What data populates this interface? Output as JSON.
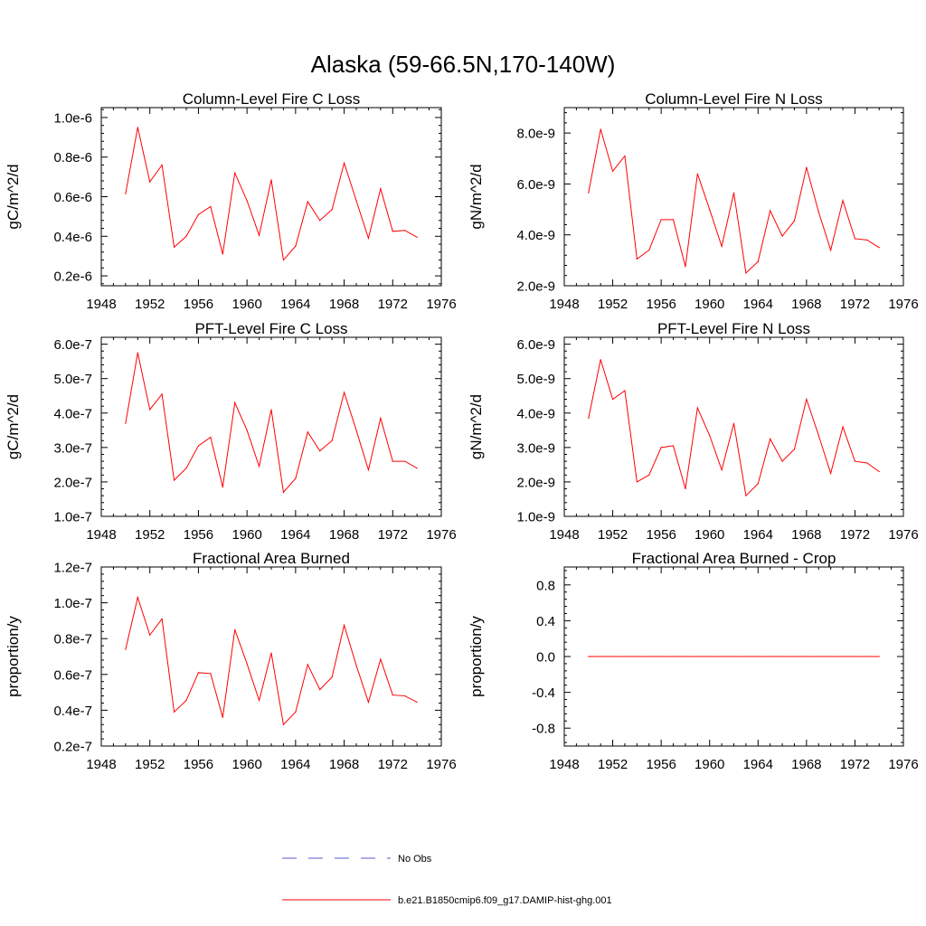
{
  "title": "Alaska (59-66.5N,170-140W)",
  "colors": {
    "model": "#ff0000",
    "obs": "#5a5ad2",
    "axis": "#000000"
  },
  "legend": {
    "entries": [
      {
        "label": "No Obs",
        "style": "dashed",
        "color": "#5a5ad2"
      },
      {
        "label": "b.e21.B1850cmip6.f09_g17.DAMIP-hist-ghg.001",
        "style": "solid",
        "color": "#ff0000"
      }
    ]
  },
  "chart_data": [
    {
      "type": "line",
      "title": "Column-Level Fire C Loss",
      "ylabel": "gC/m^2/d",
      "xlim": [
        1948,
        1976
      ],
      "ylim": [
        1.5e-07,
        1.05e-06
      ],
      "xticks": [
        1948,
        1952,
        1956,
        1960,
        1964,
        1968,
        1972,
        1976
      ],
      "yticks": [
        {
          "value": 2e-07,
          "label": "0.2e-6"
        },
        {
          "value": 4e-07,
          "label": "0.4e-6"
        },
        {
          "value": 6e-07,
          "label": "0.6e-6"
        },
        {
          "value": 8e-07,
          "label": "0.8e-6"
        },
        {
          "value": 1e-06,
          "label": "1.0e-6"
        }
      ],
      "x": [
        1950,
        1951,
        1952,
        1953,
        1954,
        1955,
        1956,
        1957,
        1958,
        1959,
        1960,
        1961,
        1962,
        1963,
        1964,
        1965,
        1966,
        1967,
        1968,
        1969,
        1970,
        1971,
        1972,
        1973,
        1974
      ],
      "series": [
        {
          "values": [
            6.15e-07,
            9.5e-07,
            6.75e-07,
            7.6e-07,
            3.45e-07,
            4e-07,
            5.1e-07,
            5.5e-07,
            3.1e-07,
            7.2e-07,
            5.8e-07,
            4.05e-07,
            6.85e-07,
            2.8e-07,
            3.5e-07,
            5.75e-07,
            4.8e-07,
            5.35e-07,
            7.7e-07,
            5.8e-07,
            3.9e-07,
            6.4e-07,
            4.25e-07,
            4.3e-07,
            3.95e-07
          ]
        }
      ]
    },
    {
      "type": "line",
      "title": "Column-Level Fire N Loss",
      "ylabel": "gN/m^2/d",
      "xlim": [
        1948,
        1976
      ],
      "ylim": [
        2e-09,
        9e-09
      ],
      "xticks": [
        1948,
        1952,
        1956,
        1960,
        1964,
        1968,
        1972,
        1976
      ],
      "yticks": [
        {
          "value": 2e-09,
          "label": "2.0e-9"
        },
        {
          "value": 4e-09,
          "label": "4.0e-9"
        },
        {
          "value": 6e-09,
          "label": "6.0e-9"
        },
        {
          "value": 8e-09,
          "label": "8.0e-9"
        }
      ],
      "x": [
        1950,
        1951,
        1952,
        1953,
        1954,
        1955,
        1956,
        1957,
        1958,
        1959,
        1960,
        1961,
        1962,
        1963,
        1964,
        1965,
        1966,
        1967,
        1968,
        1969,
        1970,
        1971,
        1972,
        1973,
        1974
      ],
      "series": [
        {
          "values": [
            5.65e-09,
            8.15e-09,
            6.5e-09,
            7.1e-09,
            3.05e-09,
            3.4e-09,
            4.6e-09,
            4.6e-09,
            2.75e-09,
            6.4e-09,
            5e-09,
            3.55e-09,
            5.65e-09,
            2.5e-09,
            2.95e-09,
            4.95e-09,
            3.95e-09,
            4.55e-09,
            6.65e-09,
            4.9e-09,
            3.4e-09,
            5.35e-09,
            3.85e-09,
            3.8e-09,
            3.5e-09
          ]
        }
      ]
    },
    {
      "type": "line",
      "title": "PFT-Level Fire C Loss",
      "ylabel": "gC/m^2/d",
      "xlim": [
        1948,
        1976
      ],
      "ylim": [
        1e-07,
        6.2e-07
      ],
      "xticks": [
        1948,
        1952,
        1956,
        1960,
        1964,
        1968,
        1972,
        1976
      ],
      "yticks": [
        {
          "value": 1e-07,
          "label": "1.0e-7"
        },
        {
          "value": 2e-07,
          "label": "2.0e-7"
        },
        {
          "value": 3e-07,
          "label": "3.0e-7"
        },
        {
          "value": 4e-07,
          "label": "4.0e-7"
        },
        {
          "value": 5e-07,
          "label": "5.0e-7"
        },
        {
          "value": 6e-07,
          "label": "6.0e-7"
        }
      ],
      "x": [
        1950,
        1951,
        1952,
        1953,
        1954,
        1955,
        1956,
        1957,
        1958,
        1959,
        1960,
        1961,
        1962,
        1963,
        1964,
        1965,
        1966,
        1967,
        1968,
        1969,
        1970,
        1971,
        1972,
        1973,
        1974
      ],
      "series": [
        {
          "values": [
            3.7e-07,
            5.75e-07,
            4.1e-07,
            4.55e-07,
            2.05e-07,
            2.4e-07,
            3.05e-07,
            3.3e-07,
            1.85e-07,
            4.3e-07,
            3.5e-07,
            2.45e-07,
            4.1e-07,
            1.7e-07,
            2.1e-07,
            3.45e-07,
            2.9e-07,
            3.2e-07,
            4.6e-07,
            3.5e-07,
            2.35e-07,
            3.85e-07,
            2.6e-07,
            2.6e-07,
            2.4e-07
          ]
        }
      ]
    },
    {
      "type": "line",
      "title": "PFT-Level Fire N Loss",
      "ylabel": "gN/m^2/d",
      "xlim": [
        1948,
        1976
      ],
      "ylim": [
        1e-09,
        6.2e-09
      ],
      "xticks": [
        1948,
        1952,
        1956,
        1960,
        1964,
        1968,
        1972,
        1976
      ],
      "yticks": [
        {
          "value": 1e-09,
          "label": "1.0e-9"
        },
        {
          "value": 2e-09,
          "label": "2.0e-9"
        },
        {
          "value": 3e-09,
          "label": "3.0e-9"
        },
        {
          "value": 4e-09,
          "label": "4.0e-9"
        },
        {
          "value": 5e-09,
          "label": "5.0e-9"
        },
        {
          "value": 6e-09,
          "label": "6.0e-9"
        }
      ],
      "x": [
        1950,
        1951,
        1952,
        1953,
        1954,
        1955,
        1956,
        1957,
        1958,
        1959,
        1960,
        1961,
        1962,
        1963,
        1964,
        1965,
        1966,
        1967,
        1968,
        1969,
        1970,
        1971,
        1972,
        1973,
        1974
      ],
      "series": [
        {
          "values": [
            3.85e-09,
            5.55e-09,
            4.4e-09,
            4.65e-09,
            2e-09,
            2.2e-09,
            3e-09,
            3.05e-09,
            1.8e-09,
            4.15e-09,
            3.35e-09,
            2.35e-09,
            3.7e-09,
            1.6e-09,
            1.95e-09,
            3.25e-09,
            2.6e-09,
            2.95e-09,
            4.4e-09,
            3.35e-09,
            2.25e-09,
            3.6e-09,
            2.6e-09,
            2.55e-09,
            2.3e-09
          ]
        }
      ]
    },
    {
      "type": "line",
      "title": "Fractional Area Burned",
      "ylabel": "proportion/y",
      "xlim": [
        1948,
        1976
      ],
      "ylim": [
        2e-08,
        1.2e-07
      ],
      "xticks": [
        1948,
        1952,
        1956,
        1960,
        1964,
        1968,
        1972,
        1976
      ],
      "yticks": [
        {
          "value": 2e-08,
          "label": "0.2e-7"
        },
        {
          "value": 4e-08,
          "label": "0.4e-7"
        },
        {
          "value": 6e-08,
          "label": "0.6e-7"
        },
        {
          "value": 8e-08,
          "label": "0.8e-7"
        },
        {
          "value": 1e-07,
          "label": "1.0e-7"
        },
        {
          "value": 1.2e-07,
          "label": "1.2e-7"
        }
      ],
      "x": [
        1950,
        1951,
        1952,
        1953,
        1954,
        1955,
        1956,
        1957,
        1958,
        1959,
        1960,
        1961,
        1962,
        1963,
        1964,
        1965,
        1966,
        1967,
        1968,
        1969,
        1970,
        1971,
        1972,
        1973,
        1974
      ],
      "series": [
        {
          "values": [
            7.4e-08,
            1.03e-07,
            8.2e-08,
            9.1e-08,
            3.9e-08,
            4.55e-08,
            6.1e-08,
            6.05e-08,
            3.6e-08,
            8.5e-08,
            6.6e-08,
            4.55e-08,
            7.2e-08,
            3.2e-08,
            3.9e-08,
            6.55e-08,
            5.15e-08,
            5.85e-08,
            8.75e-08,
            6.5e-08,
            4.45e-08,
            6.85e-08,
            4.85e-08,
            4.8e-08,
            4.45e-08
          ]
        }
      ]
    },
    {
      "type": "line",
      "title": "Fractional Area Burned - Crop",
      "ylabel": "proportion/y",
      "xlim": [
        1948,
        1976
      ],
      "ylim": [
        -1.0,
        1.0
      ],
      "xticks": [
        1948,
        1952,
        1956,
        1960,
        1964,
        1968,
        1972,
        1976
      ],
      "yticks": [
        {
          "value": -0.8,
          "label": "-0.8"
        },
        {
          "value": -0.4,
          "label": "-0.4"
        },
        {
          "value": 0.0,
          "label": "0.0"
        },
        {
          "value": 0.4,
          "label": "0.4"
        },
        {
          "value": 0.8,
          "label": "0.8"
        }
      ],
      "x": [
        1950,
        1951,
        1952,
        1953,
        1954,
        1955,
        1956,
        1957,
        1958,
        1959,
        1960,
        1961,
        1962,
        1963,
        1964,
        1965,
        1966,
        1967,
        1968,
        1969,
        1970,
        1971,
        1972,
        1973,
        1974
      ],
      "series": [
        {
          "values": [
            0,
            0,
            0,
            0,
            0,
            0,
            0,
            0,
            0,
            0,
            0,
            0,
            0,
            0,
            0,
            0,
            0,
            0,
            0,
            0,
            0,
            0,
            0,
            0,
            0
          ]
        }
      ]
    }
  ]
}
